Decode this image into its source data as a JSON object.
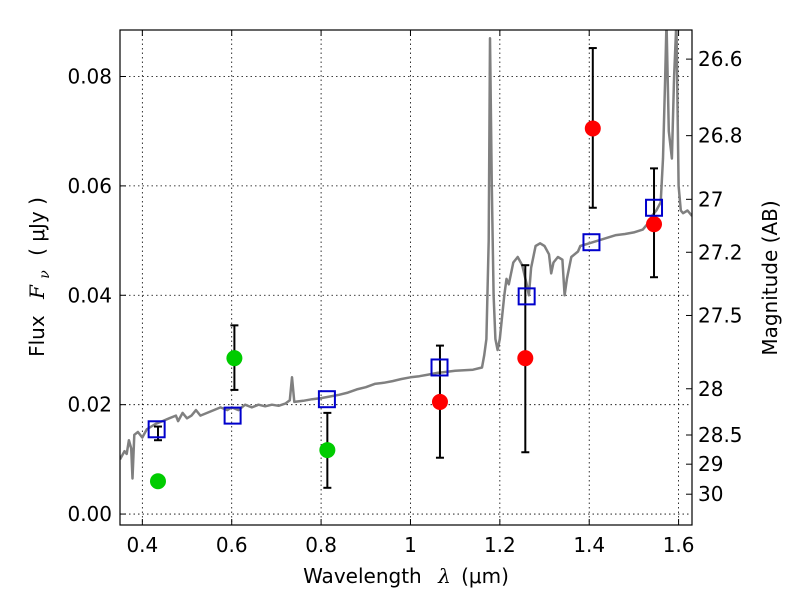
{
  "chart_data": {
    "type": "scatter",
    "xlabel": {
      "text": "Wavelength",
      "symbol": "λ",
      "unit": "(μm)"
    },
    "ylabel": {
      "text": "Flux",
      "symbol": "F",
      "subscript": "ν",
      "unit": "( μJy )"
    },
    "y2label": "Magnitude (AB)",
    "xlim": [
      0.35,
      1.63
    ],
    "ylim": [
      -0.002,
      0.0885
    ],
    "grid": true,
    "x_ticks": [
      {
        "value": 0.4,
        "label": "0.4"
      },
      {
        "value": 0.6,
        "label": "0.6"
      },
      {
        "value": 0.8,
        "label": "0.8"
      },
      {
        "value": 1.0,
        "label": "1"
      },
      {
        "value": 1.2,
        "label": "1.2"
      },
      {
        "value": 1.4,
        "label": "1.4"
      },
      {
        "value": 1.6,
        "label": "1.6"
      }
    ],
    "y_ticks": [
      {
        "value": 0.0,
        "label": "0.00"
      },
      {
        "value": 0.02,
        "label": "0.02"
      },
      {
        "value": 0.04,
        "label": "0.04"
      },
      {
        "value": 0.06,
        "label": "0.06"
      },
      {
        "value": 0.08,
        "label": "0.08"
      }
    ],
    "y2_ticks": [
      {
        "value": 26.6,
        "label": "26.6"
      },
      {
        "value": 26.8,
        "label": "26.8"
      },
      {
        "value": 27.0,
        "label": "27"
      },
      {
        "value": 27.2,
        "label": "27.2"
      },
      {
        "value": 27.5,
        "label": "27.5"
      },
      {
        "value": 28.0,
        "label": "28"
      },
      {
        "value": 28.5,
        "label": "28.5"
      },
      {
        "value": 29.0,
        "label": "29"
      },
      {
        "value": 30.0,
        "label": "30"
      }
    ],
    "series": [
      {
        "kind": "line",
        "color": "#808080",
        "points": [
          [
            0.35,
            0.01
          ],
          [
            0.36,
            0.0115
          ],
          [
            0.365,
            0.011
          ],
          [
            0.37,
            0.0135
          ],
          [
            0.375,
            0.012
          ],
          [
            0.378,
            0.0065
          ],
          [
            0.382,
            0.0145
          ],
          [
            0.39,
            0.015
          ],
          [
            0.4,
            0.014
          ],
          [
            0.41,
            0.0155
          ],
          [
            0.42,
            0.016
          ],
          [
            0.43,
            0.0165
          ],
          [
            0.445,
            0.017
          ],
          [
            0.46,
            0.0175
          ],
          [
            0.475,
            0.018
          ],
          [
            0.48,
            0.017
          ],
          [
            0.49,
            0.0185
          ],
          [
            0.5,
            0.0175
          ],
          [
            0.51,
            0.018
          ],
          [
            0.52,
            0.019
          ],
          [
            0.53,
            0.018
          ],
          [
            0.545,
            0.0185
          ],
          [
            0.56,
            0.019
          ],
          [
            0.575,
            0.0195
          ],
          [
            0.59,
            0.019
          ],
          [
            0.6,
            0.0195
          ],
          [
            0.615,
            0.019
          ],
          [
            0.63,
            0.02
          ],
          [
            0.645,
            0.0195
          ],
          [
            0.66,
            0.02
          ],
          [
            0.675,
            0.0197
          ],
          [
            0.69,
            0.02
          ],
          [
            0.705,
            0.0198
          ],
          [
            0.72,
            0.0202
          ],
          [
            0.73,
            0.0208
          ],
          [
            0.735,
            0.025
          ],
          [
            0.74,
            0.0205
          ],
          [
            0.76,
            0.0207
          ],
          [
            0.78,
            0.021
          ],
          [
            0.8,
            0.0212
          ],
          [
            0.82,
            0.0215
          ],
          [
            0.84,
            0.0218
          ],
          [
            0.86,
            0.0222
          ],
          [
            0.88,
            0.0228
          ],
          [
            0.9,
            0.0232
          ],
          [
            0.92,
            0.0238
          ],
          [
            0.94,
            0.024
          ],
          [
            0.96,
            0.0243
          ],
          [
            0.98,
            0.0247
          ],
          [
            1.0,
            0.025
          ],
          [
            1.02,
            0.0252
          ],
          [
            1.04,
            0.0255
          ],
          [
            1.06,
            0.0258
          ],
          [
            1.08,
            0.026
          ],
          [
            1.1,
            0.0262
          ],
          [
            1.12,
            0.0263
          ],
          [
            1.14,
            0.0264
          ],
          [
            1.16,
            0.0268
          ],
          [
            1.165,
            0.029
          ],
          [
            1.17,
            0.032
          ],
          [
            1.175,
            0.05
          ],
          [
            1.178,
            0.087
          ],
          [
            1.182,
            0.06
          ],
          [
            1.186,
            0.04
          ],
          [
            1.19,
            0.032
          ],
          [
            1.195,
            0.03
          ],
          [
            1.2,
            0.032
          ],
          [
            1.21,
            0.04
          ],
          [
            1.215,
            0.043
          ],
          [
            1.22,
            0.042
          ],
          [
            1.23,
            0.046
          ],
          [
            1.24,
            0.047
          ],
          [
            1.25,
            0.0455
          ],
          [
            1.26,
            0.042
          ],
          [
            1.265,
            0.04
          ],
          [
            1.27,
            0.045
          ],
          [
            1.28,
            0.049
          ],
          [
            1.29,
            0.0495
          ],
          [
            1.3,
            0.049
          ],
          [
            1.31,
            0.0475
          ],
          [
            1.315,
            0.044
          ],
          [
            1.32,
            0.046
          ],
          [
            1.33,
            0.047
          ],
          [
            1.34,
            0.0465
          ],
          [
            1.345,
            0.04
          ],
          [
            1.35,
            0.043
          ],
          [
            1.36,
            0.047
          ],
          [
            1.375,
            0.048
          ],
          [
            1.38,
            0.049
          ],
          [
            1.4,
            0.0495
          ],
          [
            1.42,
            0.05
          ],
          [
            1.44,
            0.0505
          ],
          [
            1.46,
            0.051
          ],
          [
            1.48,
            0.0512
          ],
          [
            1.5,
            0.0515
          ],
          [
            1.52,
            0.052
          ],
          [
            1.53,
            0.053
          ],
          [
            1.54,
            0.0545
          ],
          [
            1.55,
            0.0555
          ],
          [
            1.56,
            0.057
          ],
          [
            1.565,
            0.065
          ],
          [
            1.57,
            0.08
          ],
          [
            1.573,
            0.09
          ],
          [
            1.578,
            0.07
          ],
          [
            1.585,
            0.065
          ],
          [
            1.59,
            0.08
          ],
          [
            1.595,
            0.09
          ],
          [
            1.6,
            0.06
          ],
          [
            1.605,
            0.0555
          ],
          [
            1.61,
            0.055
          ],
          [
            1.62,
            0.0555
          ],
          [
            1.63,
            0.0545
          ]
        ]
      },
      {
        "kind": "markers",
        "shape": "circle",
        "color": "#00cc00",
        "points": [
          {
            "x": 0.435,
            "y": 0.006,
            "yerr_low": 0.0135,
            "yerr_high": 0.016
          },
          {
            "x": 0.606,
            "y": 0.0285,
            "yerr_low": 0.0227,
            "yerr_high": 0.0345
          },
          {
            "x": 0.814,
            "y": 0.0117,
            "yerr_low": 0.0048,
            "yerr_high": 0.0185
          }
        ]
      },
      {
        "kind": "markers",
        "shape": "circle",
        "color": "#ff0000",
        "points": [
          {
            "x": 1.066,
            "y": 0.0205,
            "yerr_low": 0.0103,
            "yerr_high": 0.0308
          },
          {
            "x": 1.257,
            "y": 0.0285,
            "yerr_low": 0.0113,
            "yerr_high": 0.0455
          },
          {
            "x": 1.408,
            "y": 0.0705,
            "yerr_low": 0.056,
            "yerr_high": 0.0852
          },
          {
            "x": 1.545,
            "y": 0.053,
            "yerr_low": 0.0433,
            "yerr_high": 0.0632
          }
        ]
      },
      {
        "kind": "markers",
        "shape": "square",
        "color": "#0000cc",
        "points": [
          {
            "x": 0.432,
            "y": 0.0155
          },
          {
            "x": 0.602,
            "y": 0.018
          },
          {
            "x": 0.813,
            "y": 0.021
          },
          {
            "x": 1.065,
            "y": 0.0268
          },
          {
            "x": 1.26,
            "y": 0.0398
          },
          {
            "x": 1.405,
            "y": 0.0497
          },
          {
            "x": 1.545,
            "y": 0.056
          }
        ]
      }
    ]
  }
}
